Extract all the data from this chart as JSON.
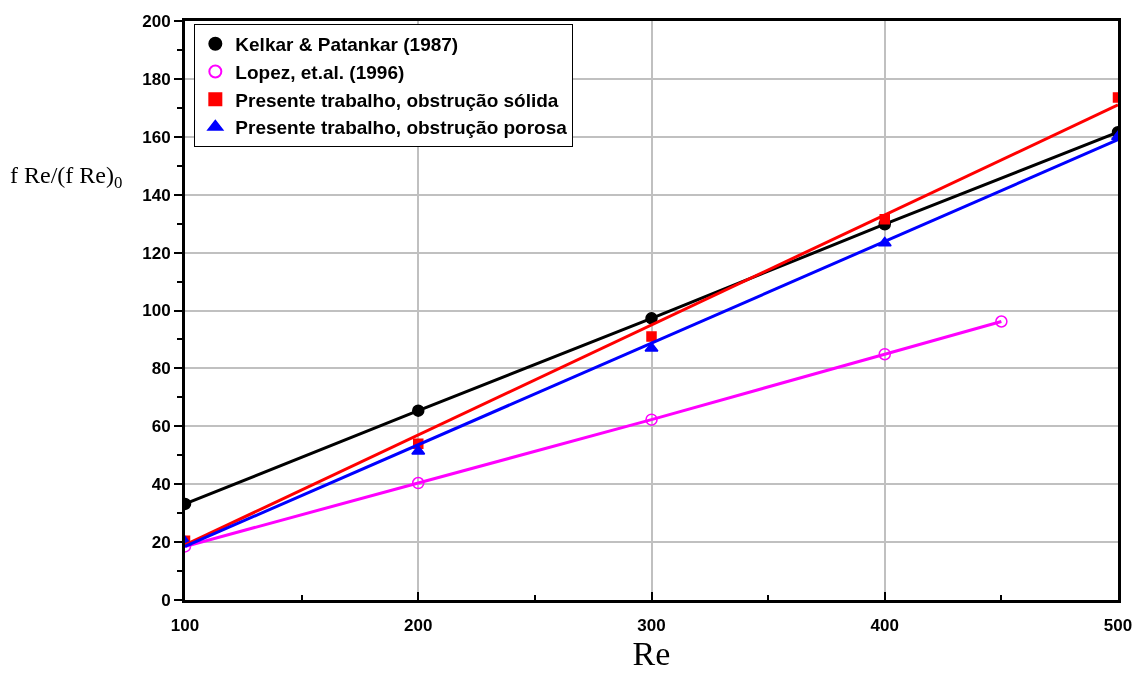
{
  "chart_data": {
    "type": "scatter",
    "xlabel": "Re",
    "ylabel": "f Re/(f Re)$_{0}$",
    "xlim": [
      100,
      500
    ],
    "ylim": [
      0,
      200
    ],
    "xticks": [
      100,
      {
        "value": 150,
        "label": null
      },
      200,
      {
        "value": 250,
        "label": null
      },
      300,
      {
        "value": 350,
        "label": null
      },
      400,
      {
        "value": 450,
        "label": null
      },
      500
    ],
    "yticks": [
      0,
      {
        "value": 10,
        "label": null
      },
      20,
      {
        "value": 30,
        "label": null
      },
      40,
      {
        "value": 50,
        "label": null
      },
      60,
      {
        "value": 70,
        "label": null
      },
      80,
      {
        "value": 90,
        "label": null
      },
      100,
      {
        "value": 110,
        "label": null
      },
      120,
      {
        "value": 130,
        "label": null
      },
      140,
      {
        "value": 150,
        "label": null
      },
      160,
      {
        "value": 170,
        "label": null
      },
      180,
      {
        "value": 190,
        "label": null
      },
      200
    ],
    "grid": true,
    "legend": "top left",
    "series": [
      {
        "name": "Kelkar & Patankar (1987)",
        "type": "line",
        "color": "#000000",
        "marker": "circle",
        "x": [
          100,
          200,
          300,
          400,
          500
        ],
        "values": [
          33.2,
          65.4,
          97.3,
          129.8,
          161.6
        ]
      },
      {
        "name": "Lopez, et.al. (1996)",
        "type": "line",
        "color": "#ff00ff",
        "marker": "circle-open",
        "x": [
          100,
          200,
          300,
          400,
          450
        ],
        "values": [
          18.5,
          40.4,
          62.3,
          84.9,
          96.2
        ]
      },
      {
        "name": "Presente trabalho, obstrução sólida",
        "color": "#ff0000",
        "marker": "square",
        "x": [
          100,
          200,
          300,
          400,
          500
        ],
        "values": [
          20.5,
          54,
          91,
          131.5,
          173.6
        ]
      },
      {
        "name": "Presente trabalho, obstrução porosa",
        "color": "#0000ff",
        "marker": "triangle",
        "x": [
          100,
          200,
          300,
          400,
          500
        ],
        "values": [
          20,
          51.4,
          87,
          123.3,
          160
        ]
      },
      {
        "type": "line",
        "color": "#ff0000",
        "marker": "none",
        "x": [
          100,
          500
        ],
        "values": [
          19,
          171
        ]
      },
      {
        "type": "line",
        "color": "#0000ff",
        "marker": "none",
        "x": [
          100,
          500
        ],
        "values": [
          18.5,
          159
        ]
      }
    ]
  }
}
